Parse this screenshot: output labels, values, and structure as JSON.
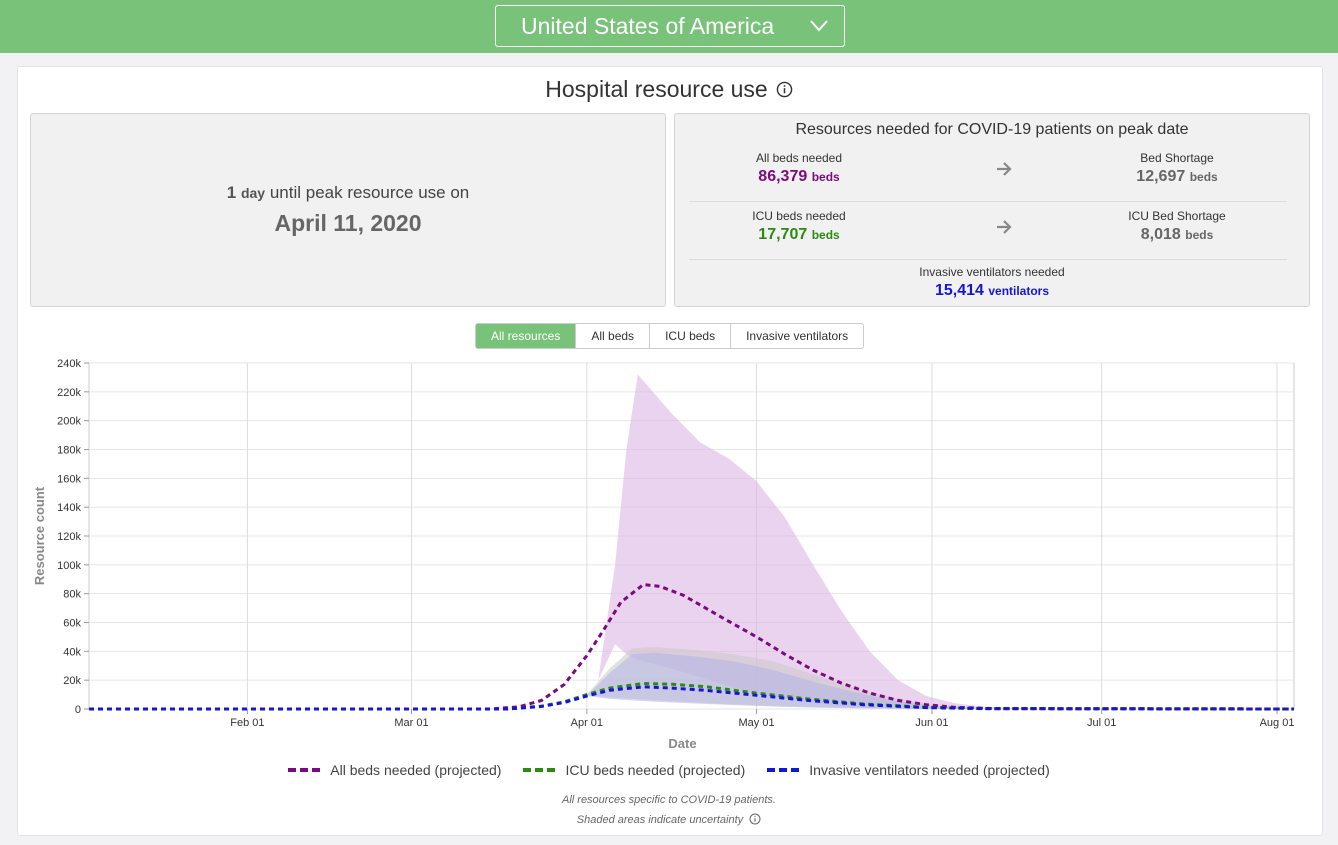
{
  "header": {
    "country": "United States of America",
    "dropdown_icon": "chevron-down-icon"
  },
  "page": {
    "title": "Hospital resource use",
    "title_icon": "info-icon"
  },
  "peak": {
    "days_number": "1",
    "days_unit": "day",
    "text": "until peak resource use on",
    "date": "April 11, 2020"
  },
  "resources": {
    "title": "Resources needed for COVID-19 patients on peak date",
    "all_beds_label": "All beds needed",
    "all_beds_value": "86,379",
    "all_beds_unit": "beds",
    "bed_shortage_label": "Bed Shortage",
    "bed_shortage_value": "12,697",
    "bed_shortage_unit": "beds",
    "icu_beds_label": "ICU beds needed",
    "icu_beds_value": "17,707",
    "icu_beds_unit": "beds",
    "icu_shortage_label": "ICU Bed Shortage",
    "icu_shortage_value": "8,018",
    "icu_shortage_unit": "beds",
    "vent_label": "Invasive ventilators needed",
    "vent_value": "15,414",
    "vent_unit": "ventilators",
    "arrow_icon": "arrow-right-icon"
  },
  "tabs": [
    {
      "label": "All resources",
      "active": true
    },
    {
      "label": "All beds",
      "active": false
    },
    {
      "label": "ICU beds",
      "active": false
    },
    {
      "label": "Invasive ventilators",
      "active": false
    }
  ],
  "colors": {
    "header_green": "#78c27a",
    "all_beds": "#7b0a7e",
    "icu_beds": "#2c8a12",
    "ventilators": "#1515d8"
  },
  "chart_data": {
    "type": "line",
    "xlabel": "Date",
    "ylabel": "Resource count",
    "x_ticks": [
      "Feb 01",
      "Mar 01",
      "Apr 01",
      "May 01",
      "Jun 01",
      "Jul 01",
      "Aug 01"
    ],
    "x_tick_dates": [
      "2020-02-01",
      "2020-03-01",
      "2020-04-01",
      "2020-05-01",
      "2020-06-01",
      "2020-07-01",
      "2020-08-01"
    ],
    "xlim": [
      "2020-01-04",
      "2020-08-04"
    ],
    "y_ticks": [
      "0",
      "20k",
      "40k",
      "60k",
      "80k",
      "100k",
      "120k",
      "140k",
      "160k",
      "180k",
      "200k",
      "220k",
      "240k"
    ],
    "ylim": [
      0,
      240000
    ],
    "grid": true,
    "legend_position": "bottom",
    "series": [
      {
        "name": "All beds needed (projected)",
        "color": "#7b0a7e",
        "dates": [
          "2020-01-04",
          "2020-03-15",
          "2020-03-20",
          "2020-03-24",
          "2020-03-28",
          "2020-04-01",
          "2020-04-04",
          "2020-04-07",
          "2020-04-11",
          "2020-04-14",
          "2020-04-18",
          "2020-04-22",
          "2020-04-26",
          "2020-05-01",
          "2020-05-06",
          "2020-05-11",
          "2020-05-16",
          "2020-05-21",
          "2020-05-26",
          "2020-05-31",
          "2020-06-05",
          "2020-06-12",
          "2020-08-04"
        ],
        "values": [
          0,
          0,
          1500,
          6000,
          17000,
          37000,
          55000,
          74000,
          86379,
          85000,
          79000,
          70000,
          61000,
          50000,
          38000,
          27000,
          18000,
          11000,
          6000,
          3000,
          1200,
          300,
          0
        ]
      },
      {
        "name": "ICU beds needed (projected)",
        "color": "#2c8a12",
        "dates": [
          "2020-01-04",
          "2020-03-18",
          "2020-03-24",
          "2020-03-28",
          "2020-04-01",
          "2020-04-05",
          "2020-04-11",
          "2020-04-16",
          "2020-04-22",
          "2020-05-01",
          "2020-05-10",
          "2020-05-20",
          "2020-05-31",
          "2020-06-10",
          "2020-08-04"
        ],
        "values": [
          0,
          0,
          2000,
          5000,
          10000,
          14500,
          17707,
          17200,
          15500,
          11000,
          7000,
          3500,
          1200,
          300,
          0
        ]
      },
      {
        "name": "Invasive ventilators needed (projected)",
        "color": "#1515d8",
        "dates": [
          "2020-01-04",
          "2020-03-18",
          "2020-03-24",
          "2020-03-28",
          "2020-04-01",
          "2020-04-05",
          "2020-04-11",
          "2020-04-16",
          "2020-04-22",
          "2020-05-01",
          "2020-05-10",
          "2020-05-20",
          "2020-05-31",
          "2020-06-10",
          "2020-08-04"
        ],
        "values": [
          0,
          0,
          1800,
          4500,
          9000,
          13000,
          15414,
          14500,
          13000,
          9500,
          6000,
          3000,
          1000,
          250,
          0
        ]
      }
    ],
    "uncertainty_bands": [
      {
        "series": "All beds needed (projected)",
        "color": "#dcb6e2",
        "dates": [
          "2020-04-03",
          "2020-04-06",
          "2020-04-08",
          "2020-04-10",
          "2020-04-16",
          "2020-04-21",
          "2020-04-26",
          "2020-05-01",
          "2020-05-06",
          "2020-05-11",
          "2020-05-16",
          "2020-05-21",
          "2020-05-26",
          "2020-05-31",
          "2020-06-05",
          "2020-06-10",
          "2020-06-20"
        ],
        "upper": [
          20000,
          100000,
          180000,
          232000,
          205000,
          185000,
          174000,
          158000,
          133000,
          100000,
          68000,
          40000,
          20000,
          9000,
          4000,
          1500,
          200
        ],
        "lower": [
          20000,
          45000,
          38000,
          34000,
          28000,
          22000,
          16000,
          11000,
          7000,
          4000,
          2000,
          900,
          300,
          100,
          0,
          0,
          0
        ]
      },
      {
        "series": "ICU beds needed (projected)",
        "color": "#c9c9c9",
        "dates": [
          "2020-04-01",
          "2020-04-05",
          "2020-04-09",
          "2020-04-13",
          "2020-04-20",
          "2020-04-27",
          "2020-05-04",
          "2020-05-11",
          "2020-05-18",
          "2020-05-25",
          "2020-06-01",
          "2020-06-10"
        ],
        "upper": [
          10000,
          28000,
          42000,
          43000,
          41000,
          38000,
          33000,
          24000,
          15000,
          8000,
          3000,
          500
        ],
        "lower": [
          10000,
          8000,
          7000,
          6000,
          4500,
          3200,
          2000,
          1200,
          600,
          250,
          80,
          0
        ]
      },
      {
        "series": "Invasive ventilators needed (projected)",
        "color": "#b5b5e6",
        "dates": [
          "2020-04-01",
          "2020-04-05",
          "2020-04-09",
          "2020-04-13",
          "2020-04-20",
          "2020-04-27",
          "2020-05-04",
          "2020-05-11",
          "2020-05-18",
          "2020-05-25",
          "2020-06-01",
          "2020-06-10"
        ],
        "upper": [
          9000,
          25000,
          38000,
          39000,
          36500,
          33000,
          27000,
          19000,
          12000,
          6000,
          2200,
          400
        ],
        "lower": [
          9000,
          7000,
          6000,
          5000,
          3800,
          2700,
          1700,
          1000,
          500,
          200,
          60,
          0
        ]
      }
    ]
  },
  "footer": {
    "note1": "All resources specific to COVID-19 patients.",
    "note2": "Shaded areas indicate uncertainty",
    "note2_icon": "info-icon"
  }
}
